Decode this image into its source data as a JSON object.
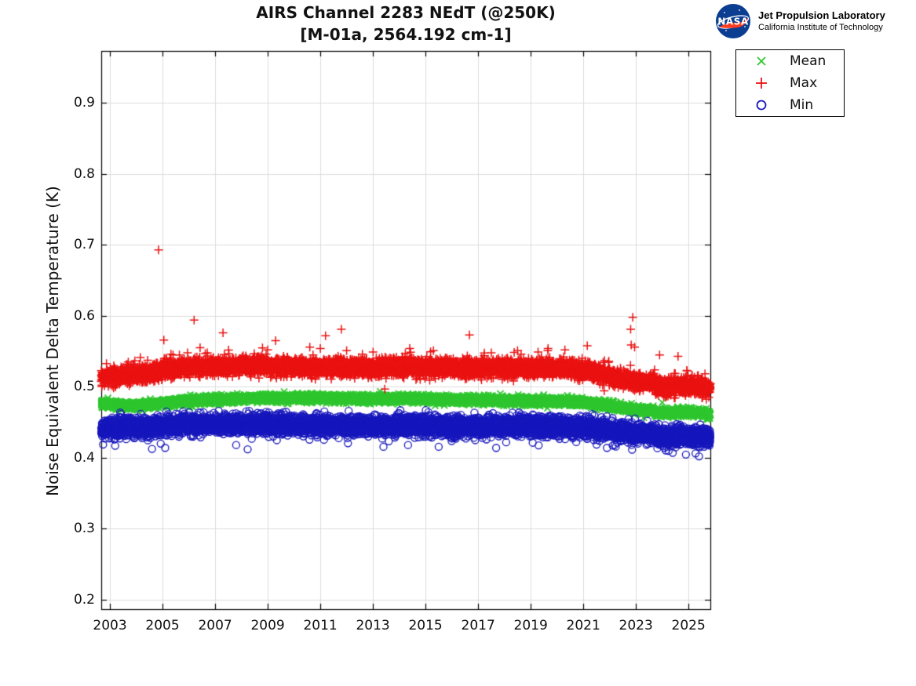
{
  "header": {
    "title_line1": "AIRS Channel 2283 NEdT (@250K)",
    "title_line2": "[M-01a, 2564.192 cm-1]",
    "branding": {
      "logo_text": "NASA",
      "org": "Jet Propulsion Laboratory",
      "sub": "California Institute of Technology",
      "logo_blue": "#0b3d91",
      "logo_red": "#fc3d21"
    }
  },
  "chart_data": {
    "type": "scatter",
    "title": "AIRS Channel 2283 NEdT (@250K) [M-01a, 2564.192 cm-1]",
    "xlabel": "",
    "ylabel": "Noise Equivalent Delta Temperature (K)",
    "xlim": [
      2002.67,
      2025.83
    ],
    "ylim": [
      0.1867,
      0.9733
    ],
    "xticks": [
      2003,
      2005,
      2007,
      2009,
      2011,
      2013,
      2015,
      2017,
      2019,
      2021,
      2023,
      2025
    ],
    "yticks": [
      "0.2",
      "0.3",
      "0.4",
      "0.5",
      "0.6",
      "0.7",
      "0.8",
      "0.9"
    ],
    "grid": true,
    "grid_color": "#dcdcdc",
    "axis_color": "#000000",
    "legend_position": "outside-top-right",
    "series": [
      {
        "name": "Mean",
        "marker": "x",
        "color": "#2fc62f",
        "points_per_year": 365,
        "noise_sigma": 0.0026,
        "seed": 101,
        "trend": [
          [
            2002.67,
            0.4765
          ],
          [
            2003.2,
            0.4752
          ],
          [
            2003.7,
            0.4735
          ],
          [
            2004.2,
            0.4742
          ],
          [
            2005.0,
            0.4772
          ],
          [
            2006.0,
            0.48
          ],
          [
            2007.0,
            0.4818
          ],
          [
            2008.0,
            0.4836
          ],
          [
            2009.0,
            0.4845
          ],
          [
            2010.0,
            0.4845
          ],
          [
            2011.0,
            0.484
          ],
          [
            2012.0,
            0.4836
          ],
          [
            2013.0,
            0.483
          ],
          [
            2014.0,
            0.4836
          ],
          [
            2015.0,
            0.4826
          ],
          [
            2016.0,
            0.4816
          ],
          [
            2017.0,
            0.481
          ],
          [
            2018.0,
            0.4806
          ],
          [
            2019.0,
            0.4806
          ],
          [
            2020.0,
            0.4796
          ],
          [
            2020.8,
            0.4788
          ],
          [
            2021.3,
            0.4772
          ],
          [
            2021.8,
            0.4742
          ],
          [
            2022.3,
            0.4712
          ],
          [
            2022.8,
            0.4686
          ],
          [
            2023.2,
            0.4674
          ],
          [
            2023.7,
            0.4662
          ],
          [
            2023.75,
            0.4634
          ],
          [
            2024.3,
            0.4632
          ],
          [
            2024.8,
            0.4645
          ],
          [
            2025.3,
            0.4632
          ],
          [
            2025.83,
            0.4615
          ]
        ],
        "outliers": [
          [
            2024.0,
            0.478
          ],
          [
            2023.3,
            0.4565
          ]
        ]
      },
      {
        "name": "Max",
        "marker": "+",
        "color": "#ea1212",
        "points_per_year": 365,
        "noise_sigma": 0.0055,
        "seed": 202,
        "spike": {
          "prob": 0.012,
          "min": 0.006,
          "max": 0.02,
          "dir": 1
        },
        "trend": [
          [
            2002.67,
            0.512
          ],
          [
            2003.0,
            0.515
          ],
          [
            2003.5,
            0.516
          ],
          [
            2004.0,
            0.5175
          ],
          [
            2004.5,
            0.5195
          ],
          [
            2005.0,
            0.523
          ],
          [
            2005.5,
            0.5265
          ],
          [
            2006.0,
            0.528
          ],
          [
            2007.0,
            0.529
          ],
          [
            2008.0,
            0.5295
          ],
          [
            2009.0,
            0.529
          ],
          [
            2010.0,
            0.528
          ],
          [
            2011.0,
            0.5275
          ],
          [
            2012.0,
            0.527
          ],
          [
            2013.0,
            0.5262
          ],
          [
            2014.0,
            0.528
          ],
          [
            2015.0,
            0.5285
          ],
          [
            2016.0,
            0.527
          ],
          [
            2017.0,
            0.5262
          ],
          [
            2018.0,
            0.5262
          ],
          [
            2019.0,
            0.5268
          ],
          [
            2020.0,
            0.5255
          ],
          [
            2020.8,
            0.524
          ],
          [
            2021.3,
            0.5212
          ],
          [
            2021.8,
            0.5168
          ],
          [
            2022.3,
            0.5122
          ],
          [
            2022.8,
            0.5085
          ],
          [
            2023.2,
            0.5072
          ],
          [
            2023.7,
            0.5058
          ],
          [
            2023.75,
            0.5005
          ],
          [
            2024.3,
            0.5
          ],
          [
            2024.8,
            0.5012
          ],
          [
            2025.3,
            0.5
          ],
          [
            2025.83,
            0.4972
          ]
        ],
        "outliers": [
          [
            2004.85,
            0.693
          ],
          [
            2005.05,
            0.566
          ],
          [
            2005.4,
            0.545
          ],
          [
            2006.2,
            0.594
          ],
          [
            2006.7,
            0.548
          ],
          [
            2007.3,
            0.576
          ],
          [
            2008.8,
            0.555
          ],
          [
            2009.0,
            0.552
          ],
          [
            2009.3,
            0.565
          ],
          [
            2010.6,
            0.556
          ],
          [
            2011.0,
            0.554
          ],
          [
            2011.2,
            0.572
          ],
          [
            2011.8,
            0.581
          ],
          [
            2012.0,
            0.551
          ],
          [
            2012.6,
            0.546
          ],
          [
            2013.45,
            0.497
          ],
          [
            2014.4,
            0.554
          ],
          [
            2015.3,
            0.551
          ],
          [
            2016.67,
            0.573
          ],
          [
            2017.5,
            0.548
          ],
          [
            2018.5,
            0.551
          ],
          [
            2019.66,
            0.554
          ],
          [
            2020.3,
            0.552
          ],
          [
            2021.15,
            0.558
          ],
          [
            2022.8,
            0.581
          ],
          [
            2022.88,
            0.598
          ],
          [
            2022.82,
            0.559
          ],
          [
            2022.95,
            0.556
          ],
          [
            2023.9,
            0.545
          ],
          [
            2024.6,
            0.543
          ]
        ]
      },
      {
        "name": "Min",
        "marker": "o",
        "color": "#1717bd",
        "points_per_year": 365,
        "noise_sigma": 0.0062,
        "seed": 303,
        "spike": {
          "prob": 0.015,
          "min": 0.004,
          "max": 0.016,
          "dir": -1
        },
        "trend": [
          [
            2002.67,
            0.4408
          ],
          [
            2003.0,
            0.4422
          ],
          [
            2003.5,
            0.4432
          ],
          [
            2004.0,
            0.4425
          ],
          [
            2004.5,
            0.4436
          ],
          [
            2005.0,
            0.4452
          ],
          [
            2005.5,
            0.4465
          ],
          [
            2006.0,
            0.4472
          ],
          [
            2007.0,
            0.4476
          ],
          [
            2008.0,
            0.4476
          ],
          [
            2009.0,
            0.447
          ],
          [
            2010.0,
            0.4465
          ],
          [
            2011.0,
            0.4464
          ],
          [
            2012.0,
            0.446
          ],
          [
            2013.0,
            0.4455
          ],
          [
            2014.0,
            0.446
          ],
          [
            2015.0,
            0.4455
          ],
          [
            2016.0,
            0.445
          ],
          [
            2017.0,
            0.4446
          ],
          [
            2018.0,
            0.4446
          ],
          [
            2019.0,
            0.4446
          ],
          [
            2020.0,
            0.444
          ],
          [
            2020.8,
            0.4434
          ],
          [
            2021.3,
            0.4424
          ],
          [
            2021.8,
            0.44
          ],
          [
            2022.3,
            0.4376
          ],
          [
            2022.8,
            0.4356
          ],
          [
            2023.2,
            0.4344
          ],
          [
            2023.7,
            0.4338
          ],
          [
            2023.75,
            0.4308
          ],
          [
            2024.3,
            0.4302
          ],
          [
            2024.8,
            0.4312
          ],
          [
            2025.3,
            0.4302
          ],
          [
            2025.83,
            0.429
          ]
        ],
        "outliers": [
          [
            2003.2,
            0.417
          ],
          [
            2004.6,
            0.4125
          ],
          [
            2005.1,
            0.414
          ],
          [
            2007.8,
            0.418
          ],
          [
            2013.4,
            0.4155
          ],
          [
            2015.5,
            0.4155
          ],
          [
            2019.3,
            0.4175
          ],
          [
            2021.9,
            0.414
          ],
          [
            2024.4,
            0.407
          ],
          [
            2024.9,
            0.4045
          ],
          [
            2025.4,
            0.402
          ]
        ]
      }
    ]
  }
}
